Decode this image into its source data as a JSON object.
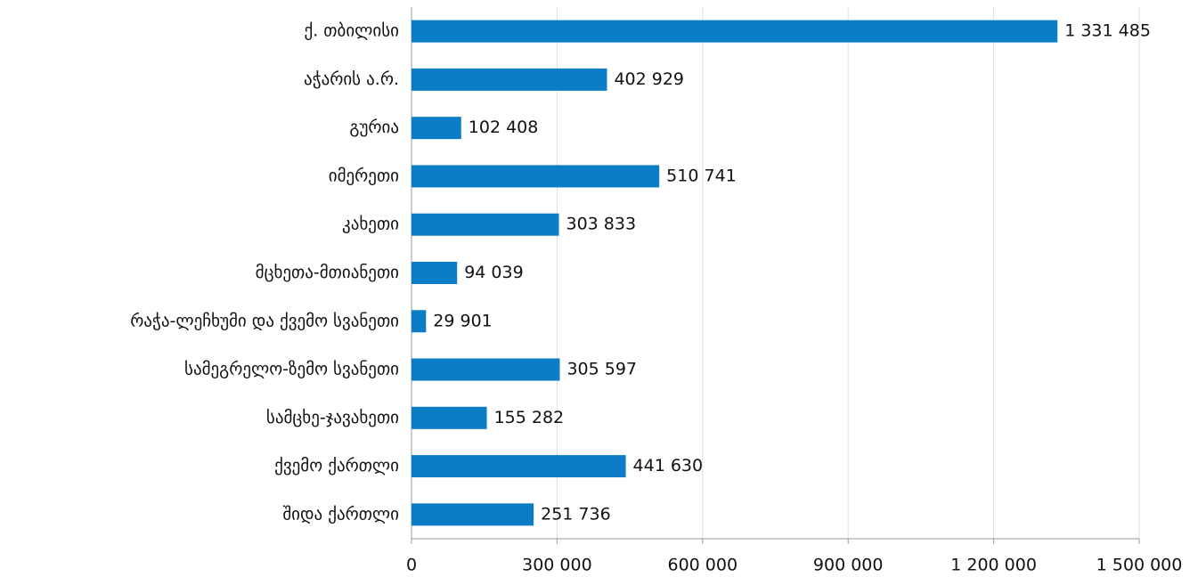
{
  "chart_data": {
    "type": "hbar",
    "categories": [
      "ქ. თბილისი",
      "აჭარის ა.რ.",
      "გურია",
      "იმერეთი",
      "კახეთი",
      "მცხეთა-მთიანეთი",
      "რაჭა-ლეჩხუმი და ქვემო სვანეთი",
      "სამეგრელო-ზემო სვანეთი",
      "სამცხე-ჯავახეთი",
      "ქვემო ქართლი",
      "შიდა ქართლი"
    ],
    "values": [
      1331485,
      402929,
      102408,
      510741,
      303833,
      94039,
      29901,
      305597,
      155282,
      441630,
      251736
    ],
    "value_labels": [
      "1 331 485",
      "402 929",
      "102 408",
      "510 741",
      "303 833",
      "94 039",
      "29 901",
      "305 597",
      "155 282",
      "441 630",
      "251 736"
    ],
    "color": "#0b7dc6",
    "xlim": [
      0,
      1500000
    ],
    "xticks": [
      0,
      {
        "value": 300000,
        "label": "300 000"
      },
      {
        "value": 600000,
        "label": "600 000"
      },
      {
        "value": 900000,
        "label": "900 000"
      },
      {
        "value": 1200000,
        "label": "1 200 000"
      },
      {
        "value": 1500000,
        "label": "1 500 000"
      }
    ],
    "grid": true
  }
}
